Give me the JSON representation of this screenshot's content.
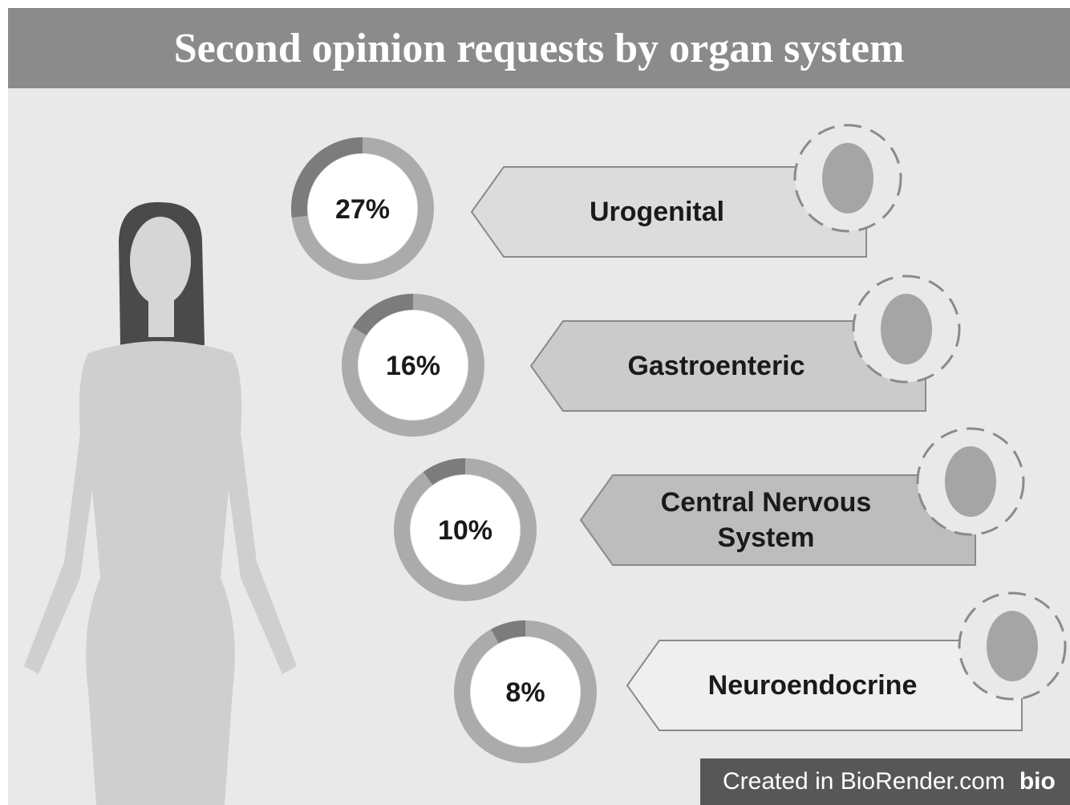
{
  "chart_data": {
    "type": "donut",
    "title": "Second opinion requests by organ system",
    "categories": [
      "Urogenital",
      "Gastroenteric",
      "Central Nervous System",
      "Neuroendocrine"
    ],
    "values": [
      27,
      16,
      10,
      8
    ],
    "value_labels": [
      "27%",
      "16%",
      "10%",
      "8%"
    ],
    "color": "#7c7c7c",
    "track_color": "#ababab",
    "source": "Created in BioRender.com",
    "logo": "bio"
  }
}
